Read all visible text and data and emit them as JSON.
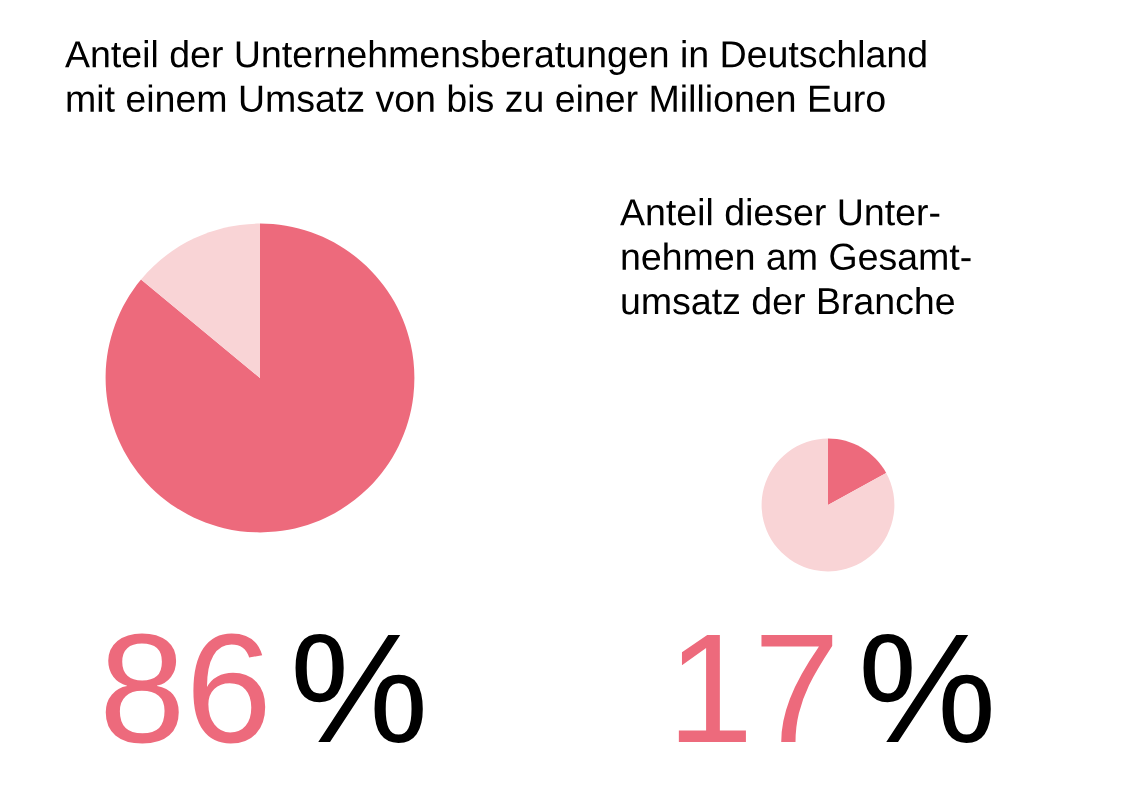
{
  "chart_data": [
    {
      "type": "pie",
      "title": "Anteil der Unternehmensberatungen in Deutschland\nmit einem Umsatz von bis zu einer Millionen Euro",
      "categories": [
        null,
        null
      ],
      "values": [
        86,
        14
      ],
      "colors": [
        "#ed6a7c",
        "#f9d4d6"
      ],
      "annotations": [
        "86 %"
      ]
    },
    {
      "type": "pie",
      "title": "Anteil dieser Unter-\nnehmen am Gesamt-\numsatz der Branche",
      "categories": [
        null,
        null
      ],
      "values": [
        17,
        83
      ],
      "colors": [
        "#ed6a7c",
        "#f9d4d6"
      ],
      "annotations": [
        "17 %"
      ]
    }
  ]
}
